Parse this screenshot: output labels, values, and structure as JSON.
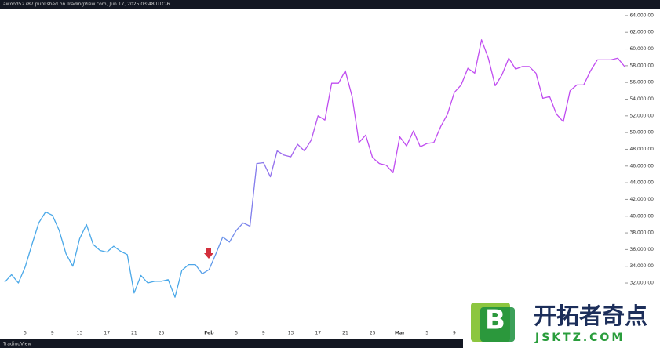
{
  "header": {
    "text": "awood52787 published on TradingView.com, Jun 17, 2025 03:48 UTC-6"
  },
  "footer": {
    "text": "TradingView"
  },
  "watermark": {
    "logo": "B",
    "name": "开拓者奇点",
    "site": "JSKTZ.COM"
  },
  "chart_data": {
    "type": "line",
    "categories": [
      null,
      null,
      null,
      "5",
      null,
      null,
      null,
      "9",
      null,
      null,
      null,
      "13",
      null,
      null,
      null,
      "17",
      null,
      null,
      null,
      "21",
      null,
      null,
      null,
      "25",
      null,
      null,
      null,
      null,
      null,
      null,
      "Feb",
      null,
      null,
      null,
      "5",
      null,
      null,
      null,
      "9",
      null,
      null,
      null,
      "13",
      null,
      null,
      null,
      "17",
      null,
      null,
      null,
      "21",
      null,
      null,
      null,
      "25",
      null,
      null,
      null,
      "Mar",
      null,
      null,
      null,
      "5",
      null,
      null,
      null,
      "9",
      null,
      null,
      null,
      null,
      null,
      null,
      null,
      null,
      null,
      null,
      null,
      null,
      null,
      null,
      null,
      null,
      null,
      null,
      null,
      null,
      null,
      null,
      null,
      null,
      null
    ],
    "series": [
      {
        "colors": [
          "#4aa8e8",
          "#c04cf0"
        ],
        "values": [
          32100,
          33000,
          32000,
          33900,
          36600,
          39200,
          40500,
          40100,
          38300,
          35500,
          34000,
          37300,
          39000,
          36600,
          35900,
          35700,
          36400,
          35800,
          35400,
          30800,
          32900,
          32000,
          32200,
          32200,
          32400,
          30300,
          33500,
          34200,
          34200,
          33100,
          33600,
          35500,
          37500,
          36900,
          38300,
          39200,
          38800,
          46300,
          46400,
          44700,
          47800,
          47300,
          47100,
          48600,
          47800,
          49100,
          52000,
          51500,
          55900,
          55900,
          57400,
          54300,
          48800,
          49700,
          47000,
          46300,
          46100,
          45200,
          49500,
          48400,
          50200,
          48300,
          48700,
          48800,
          50700,
          52200,
          54800,
          55700,
          57700,
          57100,
          61100,
          58900,
          55600,
          56900,
          58900,
          57600,
          57900,
          57900,
          57100,
          54100,
          54300,
          52200,
          51300,
          55000,
          55700,
          55700,
          57400,
          58700,
          58700,
          58700,
          58900,
          57900
        ]
      }
    ],
    "ylim": [
      27220,
      64740
    ],
    "yticks": [
      {
        "value": 32000,
        "label": "32,000.00"
      },
      {
        "value": 34000,
        "label": "34,000.00"
      },
      {
        "value": 36000,
        "label": "36,000.00"
      },
      {
        "value": 38000,
        "label": "38,000.00"
      },
      {
        "value": 40000,
        "label": "40,000.00"
      },
      {
        "value": 42000,
        "label": "42,000.00"
      },
      {
        "value": 44000,
        "label": "44,000.00"
      },
      {
        "value": 46000,
        "label": "46,000.00"
      },
      {
        "value": 48000,
        "label": "48,000.00"
      },
      {
        "value": 50000,
        "label": "50,000.00"
      },
      {
        "value": 52000,
        "label": "52,000.00"
      },
      {
        "value": 54000,
        "label": "54,000.00"
      },
      {
        "value": 56000,
        "label": "56,000.00"
      },
      {
        "value": 58000,
        "label": "58,000.00"
      },
      {
        "value": 60000,
        "label": "60,000.00"
      },
      {
        "value": 62000,
        "label": "62,000.00"
      },
      {
        "value": 64000,
        "label": "64,000.00"
      }
    ],
    "grid": false
  }
}
